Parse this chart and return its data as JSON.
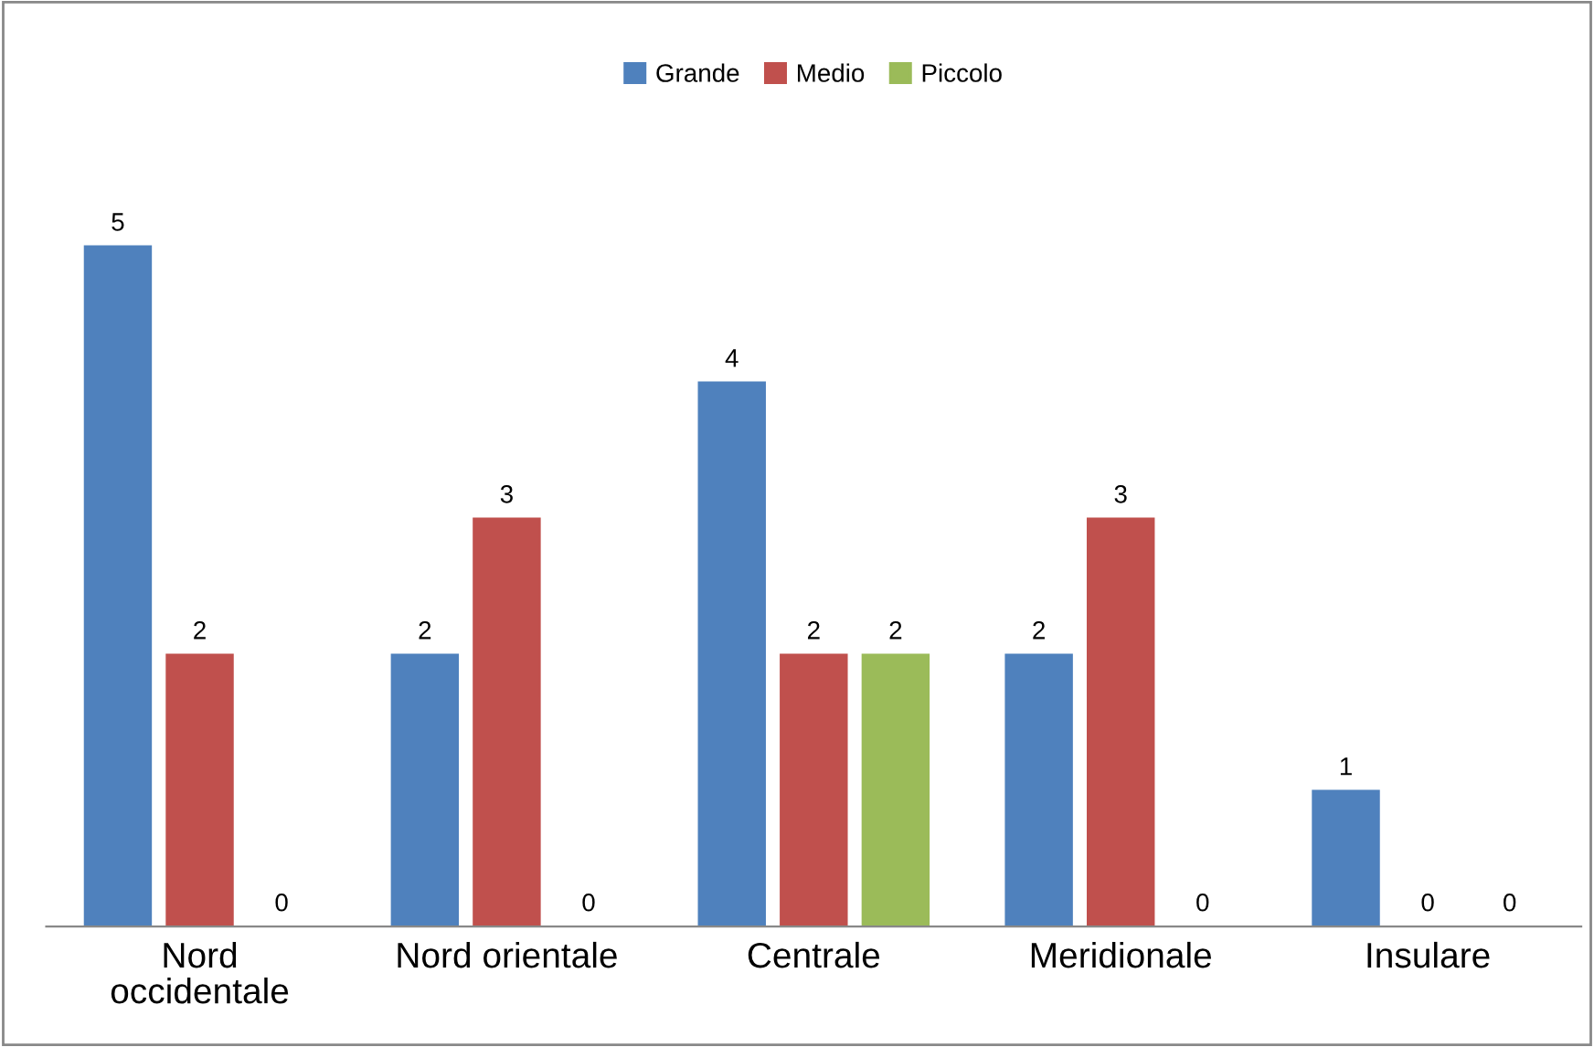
{
  "chart_data": {
    "type": "bar",
    "categories": [
      "Nord\noccidentale",
      "Nord orientale",
      "Centrale",
      "Meridionale",
      "Insulare"
    ],
    "series": [
      {
        "name": "Grande",
        "color": "#4f81bd",
        "values": [
          5,
          2,
          4,
          2,
          1
        ]
      },
      {
        "name": "Medio",
        "color": "#c0504d",
        "values": [
          2,
          3,
          2,
          3,
          0
        ]
      },
      {
        "name": "Piccolo",
        "color": "#9bbb59",
        "values": [
          0,
          0,
          2,
          0,
          0
        ]
      }
    ],
    "data_labels": true,
    "legend": "top",
    "grid": false
  }
}
